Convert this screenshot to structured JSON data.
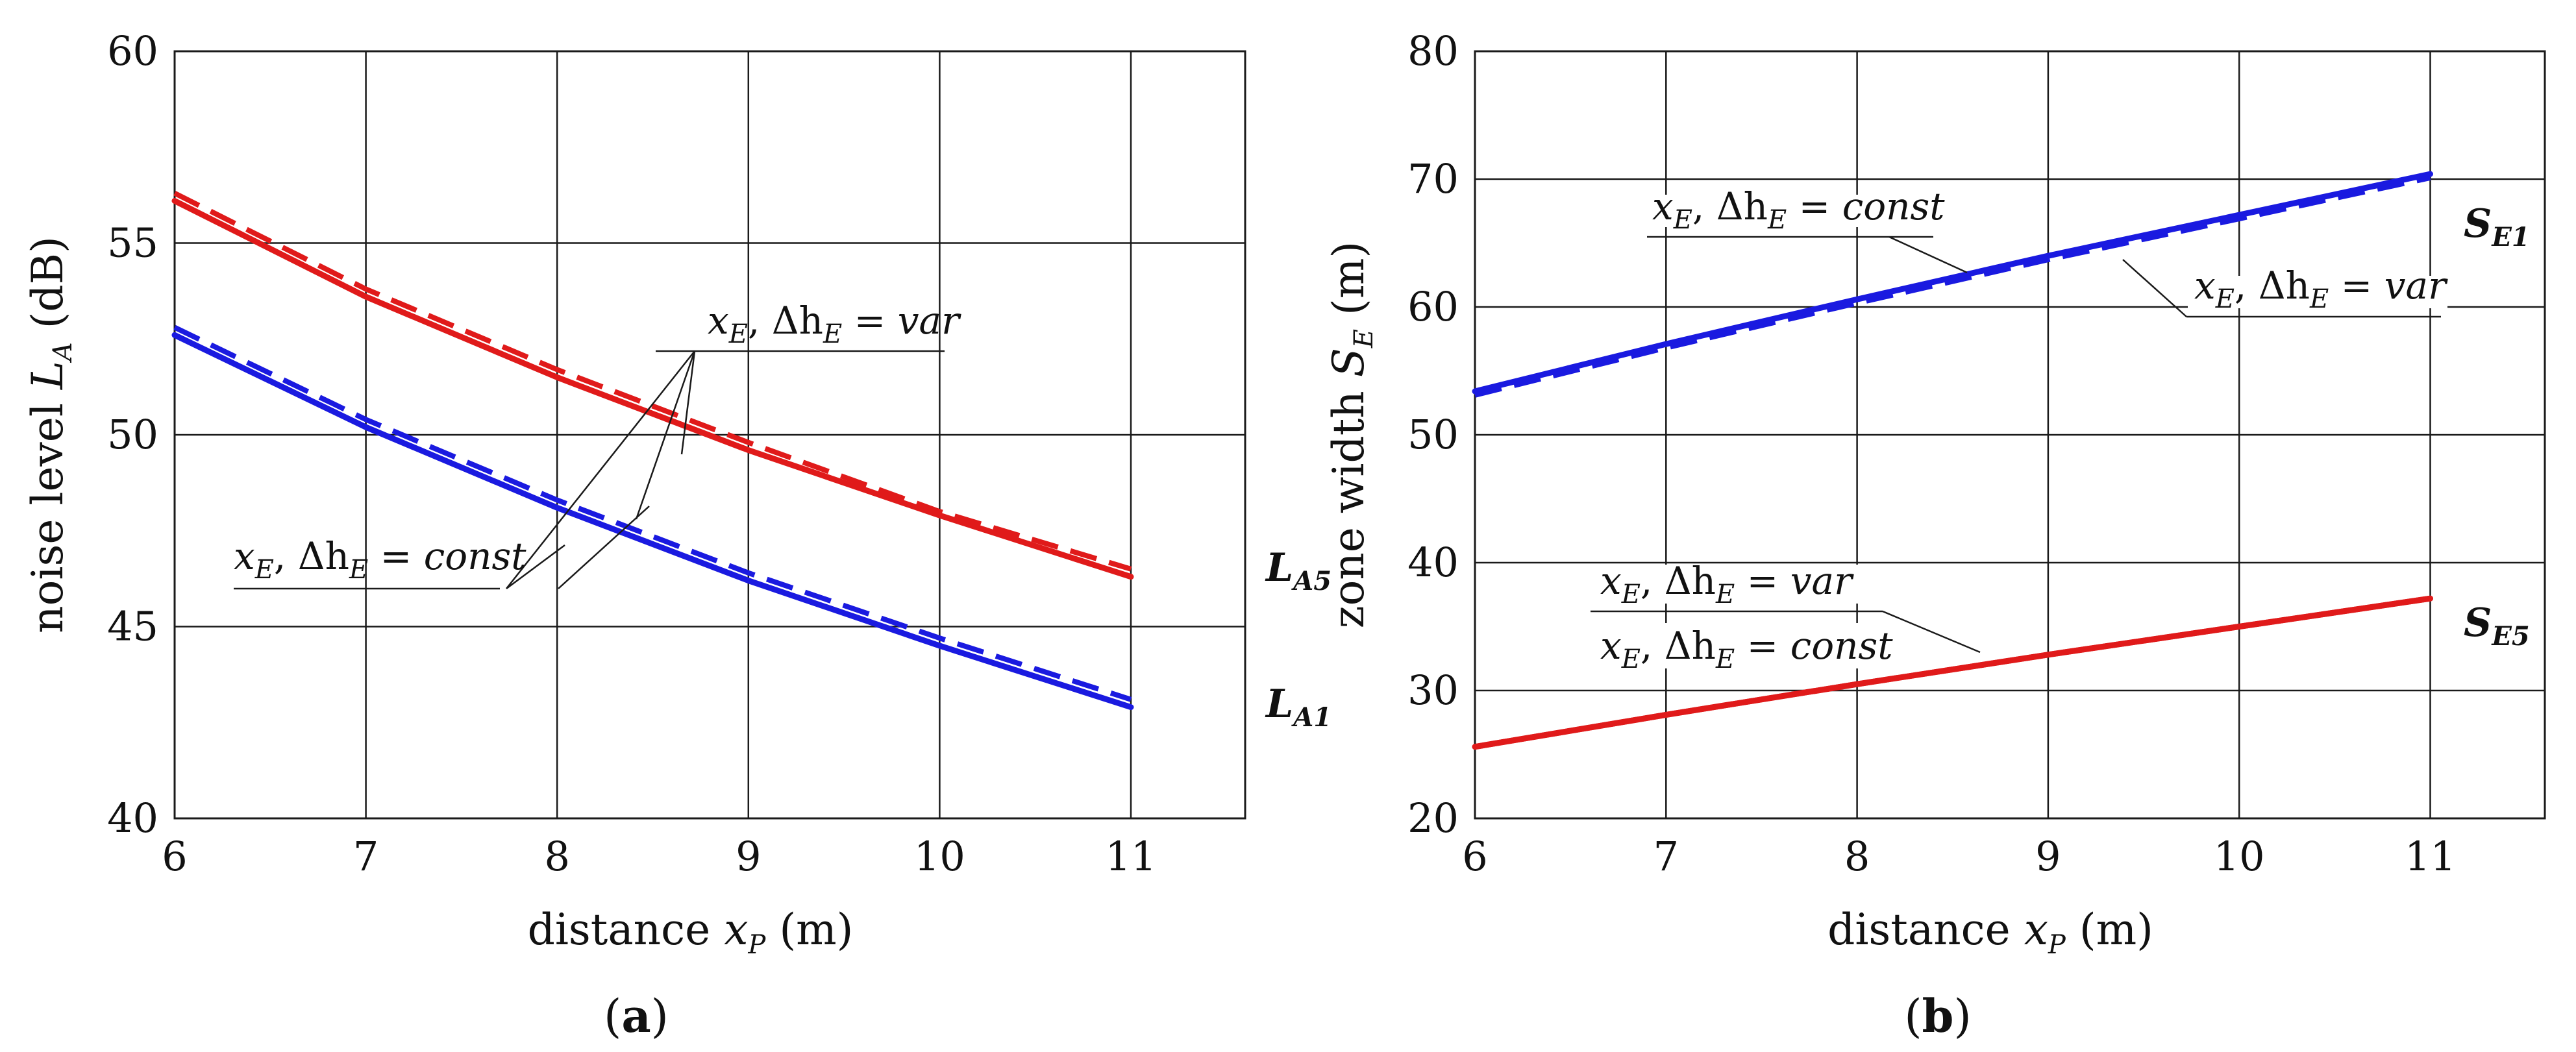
{
  "chart_data": [
    {
      "type": "line",
      "panel": "a",
      "xlabel": "distance x",
      "xlabel_sub": "P",
      "xlabel_unit": "(m)",
      "ylabel": "noise level L",
      "ylabel_sub": "A",
      "ylabel_unit": "(dB)",
      "xlim": [
        6,
        11.6
      ],
      "ylim": [
        40,
        60
      ],
      "xticks": [
        "6",
        "7",
        "8",
        "9",
        "10",
        "11"
      ],
      "yticks": [
        "40",
        "45",
        "50",
        "55",
        "60"
      ],
      "x": [
        6,
        7,
        8,
        9,
        10,
        11
      ],
      "series": [
        {
          "name": "L_A5 (x_E, Δh_E = const)",
          "group": "L_A5",
          "style": "solid",
          "color": "#e01a1a",
          "values": [
            56.1,
            53.6,
            51.5,
            49.6,
            47.9,
            46.3
          ]
        },
        {
          "name": "L_A5 (x_E, Δh_E = var)",
          "group": "L_A5",
          "style": "dashed",
          "color": "#e01a1a",
          "values": [
            56.3,
            53.8,
            51.7,
            49.8,
            48.0,
            46.5
          ]
        },
        {
          "name": "L_A1 (x_E, Δh_E = const)",
          "group": "L_A1",
          "style": "solid",
          "color": "#1a1ae0",
          "values": [
            52.6,
            50.2,
            48.1,
            46.2,
            44.5,
            42.9
          ]
        },
        {
          "name": "L_A1 (x_E, Δh_E = var)",
          "group": "L_A1",
          "style": "dashed",
          "color": "#1a1ae0",
          "values": [
            52.8,
            50.4,
            48.3,
            46.4,
            44.7,
            43.1
          ]
        }
      ],
      "end_labels": [
        {
          "main": "L",
          "sub": "A5"
        },
        {
          "main": "L",
          "sub": "A1"
        }
      ],
      "annotations": [
        {
          "pre": "x",
          "pre_sub": "E",
          "mid": ", Δh",
          "mid_sub": "E",
          "post": " = var"
        },
        {
          "pre": "x",
          "pre_sub": "E",
          "mid": ", Δh",
          "mid_sub": "E",
          "post": " = const"
        }
      ],
      "panel_label": "(a)"
    },
    {
      "type": "line",
      "panel": "b",
      "xlabel": "distance x",
      "xlabel_sub": "P",
      "xlabel_unit": "(m)",
      "ylabel": "zone width S",
      "ylabel_sub": "E",
      "ylabel_unit": "(m)",
      "xlim": [
        6,
        11.6
      ],
      "ylim": [
        20,
        80
      ],
      "xticks": [
        "6",
        "7",
        "8",
        "9",
        "10",
        "11"
      ],
      "yticks": [
        "20",
        "30",
        "40",
        "50",
        "60",
        "70",
        "80"
      ],
      "x": [
        6,
        7,
        8,
        9,
        10,
        11
      ],
      "series": [
        {
          "name": "S_E1 (x_E, Δh_E = const)",
          "group": "S_E1",
          "style": "solid",
          "color": "#1a1ae0",
          "values": [
            53.4,
            57.1,
            60.6,
            64.0,
            67.2,
            70.4
          ]
        },
        {
          "name": "S_E1 (x_E, Δh_E = var)",
          "group": "S_E1",
          "style": "dashed",
          "color": "#1a1ae0",
          "values": [
            53.1,
            56.8,
            60.3,
            63.7,
            66.9,
            70.1
          ]
        },
        {
          "name": "S_E5 (x_E, Δh_E = var)",
          "group": "S_E5",
          "style": "solid",
          "color": "#e01a1a",
          "values": [
            25.6,
            28.1,
            30.5,
            32.8,
            35.0,
            37.2
          ]
        },
        {
          "name": "S_E5 (x_E, Δh_E = const)",
          "group": "S_E5",
          "style": "solid",
          "color": "#e01a1a",
          "values": [
            25.6,
            28.1,
            30.5,
            32.8,
            35.0,
            37.2
          ]
        }
      ],
      "end_labels": [
        {
          "main": "S",
          "sub": "E1"
        },
        {
          "main": "S",
          "sub": "E5"
        }
      ],
      "annotations": [
        {
          "pre": "x",
          "pre_sub": "E",
          "mid": ", Δh",
          "mid_sub": "E",
          "post": " = const"
        },
        {
          "pre": "x",
          "pre_sub": "E",
          "mid": ", Δh",
          "mid_sub": "E",
          "post": " = var"
        },
        {
          "pre": "x",
          "pre_sub": "E",
          "mid": ", Δh",
          "mid_sub": "E",
          "post": " = var"
        },
        {
          "pre": "x",
          "pre_sub": "E",
          "mid": ", Δh",
          "mid_sub": "E",
          "post": " = const"
        }
      ],
      "panel_label": "(b)"
    }
  ]
}
